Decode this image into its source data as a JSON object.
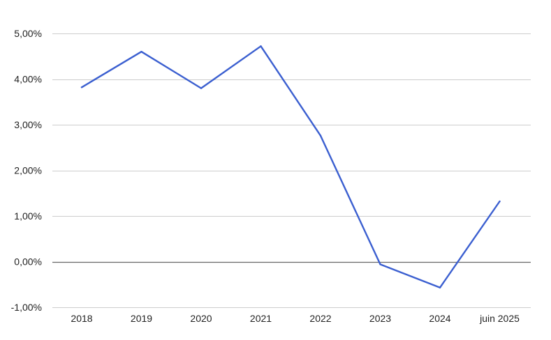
{
  "chart_data": {
    "type": "line",
    "title": "",
    "xlabel": "",
    "ylabel": "",
    "categories": [
      "2018",
      "2019",
      "2020",
      "2021",
      "2022",
      "2023",
      "2024",
      "juin 2025"
    ],
    "series": [
      {
        "values": [
          3.82,
          4.6,
          3.8,
          4.72,
          2.76,
          -0.06,
          -0.57,
          1.32
        ]
      }
    ],
    "ylim": [
      -1.0,
      5.0
    ],
    "yticks": [
      5.0,
      4.0,
      3.0,
      2.0,
      1.0,
      0.0,
      -1.0
    ],
    "ytick_labels": [
      "5,00%",
      "4,00%",
      "3,00%",
      "2,00%",
      "1,00%",
      "0,00%",
      "-1,00%"
    ],
    "grid": true,
    "legend": "none",
    "colors": {
      "line": "#3b5fd0",
      "grid": "#cccccc",
      "zero_line": "#666666"
    }
  }
}
